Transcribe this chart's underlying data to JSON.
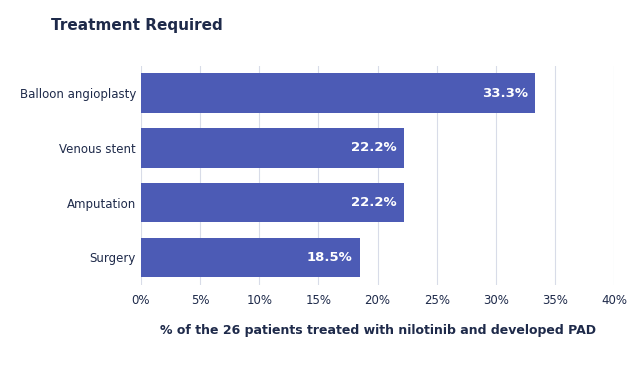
{
  "title": "Treatment Required",
  "categories": [
    "Surgery",
    "Amputation",
    "Venous stent",
    "Balloon angioplasty"
  ],
  "values": [
    18.5,
    22.2,
    22.2,
    33.3
  ],
  "labels": [
    "18.5%",
    "22.2%",
    "22.2%",
    "33.3%"
  ],
  "bar_color": "#4C5BB5",
  "background_color": "#ffffff",
  "xlabel": "% of the 26 patients treated with nilotinib and developed PAD",
  "xlim": [
    0,
    40
  ],
  "xticks": [
    0,
    5,
    10,
    15,
    20,
    25,
    30,
    35,
    40
  ],
  "title_fontsize": 11,
  "label_fontsize": 9.5,
  "tick_fontsize": 8.5,
  "xlabel_fontsize": 9,
  "bar_height": 0.72,
  "text_color_dark": "#1e2a4a",
  "text_color_light": "#ffffff",
  "grid_color": "#d8dce8"
}
